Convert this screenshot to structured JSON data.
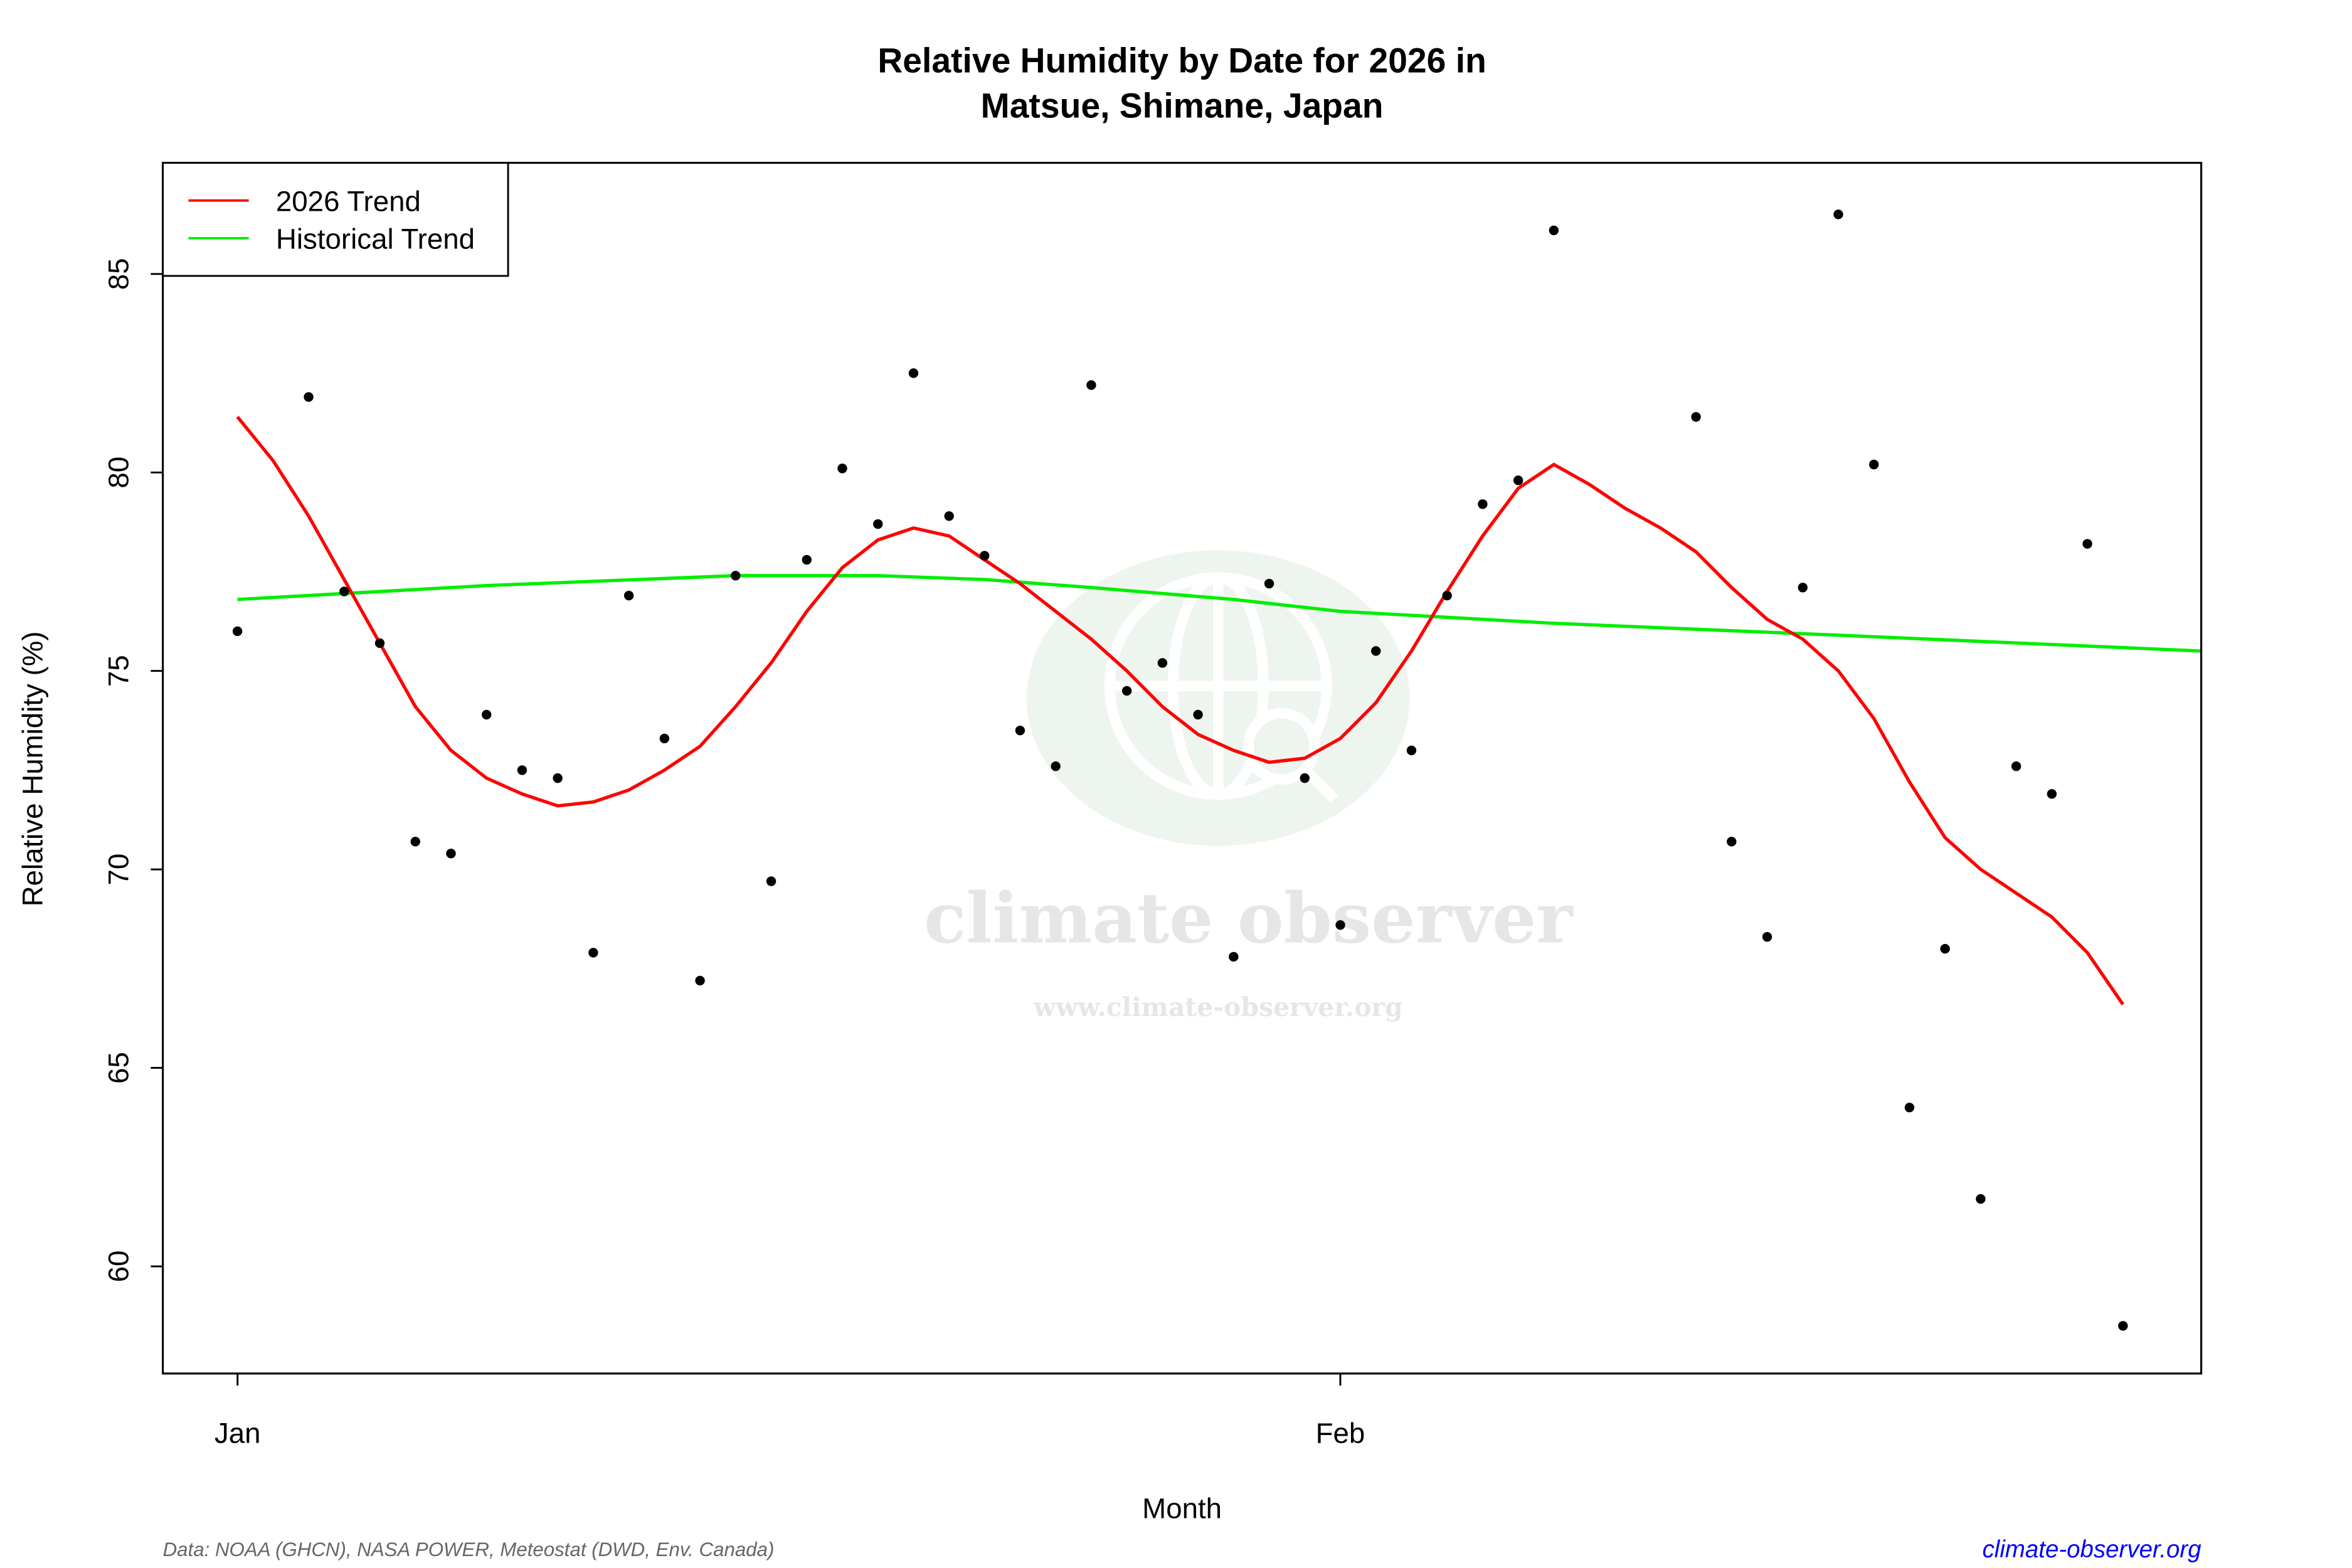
{
  "chart_data": {
    "type": "scatter",
    "title_line1": "Relative Humidity by Date for 2026 in",
    "title_line2": "Matsue, Shimane, Japan",
    "xlabel": "Month",
    "ylabel": "Relative Humidity (%)",
    "x_ticks": [
      {
        "date": "2026-01-01",
        "label": "Jan"
      },
      {
        "date": "2026-02-01",
        "label": "Feb"
      }
    ],
    "y_ticks": [
      60,
      65,
      70,
      75,
      80,
      85
    ],
    "xlim": [
      "2025-12-29.9",
      "2026-02-25.2"
    ],
    "ylim": [
      57.3,
      87.8
    ],
    "grid": false,
    "legend": {
      "placement": "top-left",
      "entries": [
        {
          "label": "2026 Trend",
          "color": "#ff0000"
        },
        {
          "label": "Historical Trend",
          "color": "#00ee00"
        }
      ]
    },
    "points": {
      "color": "#000000",
      "data": [
        [
          "2026-01-01",
          76.0
        ],
        [
          "2026-01-03",
          81.9
        ],
        [
          "2026-01-04",
          77.0
        ],
        [
          "2026-01-05",
          75.7
        ],
        [
          "2026-01-06",
          70.7
        ],
        [
          "2026-01-07",
          70.4
        ],
        [
          "2026-01-08",
          73.9
        ],
        [
          "2026-01-09",
          72.5
        ],
        [
          "2026-01-10",
          72.3
        ],
        [
          "2026-01-11",
          67.9
        ],
        [
          "2026-01-12",
          76.9
        ],
        [
          "2026-01-13",
          73.3
        ],
        [
          "2026-01-14",
          67.2
        ],
        [
          "2026-01-15",
          77.4
        ],
        [
          "2026-01-16",
          69.7
        ],
        [
          "2026-01-17",
          77.8
        ],
        [
          "2026-01-18",
          80.1
        ],
        [
          "2026-01-19",
          78.7
        ],
        [
          "2026-01-20",
          82.5
        ],
        [
          "2026-01-21",
          78.9
        ],
        [
          "2026-01-22",
          77.9
        ],
        [
          "2026-01-23",
          73.5
        ],
        [
          "2026-01-24",
          72.6
        ],
        [
          "2026-01-25",
          82.2
        ],
        [
          "2026-01-26",
          74.5
        ],
        [
          "2026-01-27",
          75.2
        ],
        [
          "2026-01-28",
          73.9
        ],
        [
          "2026-01-29",
          67.8
        ],
        [
          "2026-01-30",
          77.2
        ],
        [
          "2026-01-31",
          72.3
        ],
        [
          "2026-02-01",
          68.6
        ],
        [
          "2026-02-02",
          75.5
        ],
        [
          "2026-02-03",
          73.0
        ],
        [
          "2026-02-04",
          76.9
        ],
        [
          "2026-02-05",
          79.2
        ],
        [
          "2026-02-06",
          79.8
        ],
        [
          "2026-02-07",
          86.1
        ],
        [
          "2026-02-11",
          81.4
        ],
        [
          "2026-02-12",
          70.7
        ],
        [
          "2026-02-13",
          68.3
        ],
        [
          "2026-02-14",
          77.1
        ],
        [
          "2026-02-15",
          86.5
        ],
        [
          "2026-02-16",
          80.2
        ],
        [
          "2026-02-17",
          64.0
        ],
        [
          "2026-02-18",
          68.0
        ],
        [
          "2026-02-19",
          61.7
        ],
        [
          "2026-02-20",
          72.6
        ],
        [
          "2026-02-21",
          71.9
        ],
        [
          "2026-02-22",
          78.2
        ],
        [
          "2026-02-23",
          58.5
        ]
      ]
    },
    "series": [
      {
        "name": "2026 Trend",
        "color": "#ff0000",
        "data": [
          [
            "2026-01-01",
            81.4
          ],
          [
            "2026-01-02",
            80.3
          ],
          [
            "2026-01-03",
            78.9
          ],
          [
            "2026-01-04",
            77.3
          ],
          [
            "2026-01-05",
            75.7
          ],
          [
            "2026-01-06",
            74.1
          ],
          [
            "2026-01-07",
            73.0
          ],
          [
            "2026-01-08",
            72.3
          ],
          [
            "2026-01-09",
            71.9
          ],
          [
            "2026-01-10",
            71.6
          ],
          [
            "2026-01-11",
            71.7
          ],
          [
            "2026-01-12",
            72.0
          ],
          [
            "2026-01-13",
            72.5
          ],
          [
            "2026-01-14",
            73.1
          ],
          [
            "2026-01-15",
            74.1
          ],
          [
            "2026-01-16",
            75.2
          ],
          [
            "2026-01-17",
            76.5
          ],
          [
            "2026-01-18",
            77.6
          ],
          [
            "2026-01-19",
            78.3
          ],
          [
            "2026-01-20",
            78.6
          ],
          [
            "2026-01-21",
            78.4
          ],
          [
            "2026-01-22",
            77.8
          ],
          [
            "2026-01-23",
            77.2
          ],
          [
            "2026-01-24",
            76.5
          ],
          [
            "2026-01-25",
            75.8
          ],
          [
            "2026-01-26",
            75.0
          ],
          [
            "2026-01-27",
            74.1
          ],
          [
            "2026-01-28",
            73.4
          ],
          [
            "2026-01-29",
            73.0
          ],
          [
            "2026-01-30",
            72.7
          ],
          [
            "2026-01-31",
            72.8
          ],
          [
            "2026-02-01",
            73.3
          ],
          [
            "2026-02-02",
            74.2
          ],
          [
            "2026-02-03",
            75.5
          ],
          [
            "2026-02-04",
            77.0
          ],
          [
            "2026-02-05",
            78.4
          ],
          [
            "2026-02-06",
            79.6
          ],
          [
            "2026-02-07",
            80.2
          ],
          [
            "2026-02-08",
            79.7
          ],
          [
            "2026-02-09",
            79.1
          ],
          [
            "2026-02-10",
            78.6
          ],
          [
            "2026-02-11",
            78.0
          ],
          [
            "2026-02-12",
            77.1
          ],
          [
            "2026-02-13",
            76.3
          ],
          [
            "2026-02-14",
            75.8
          ],
          [
            "2026-02-15",
            75.0
          ],
          [
            "2026-02-16",
            73.8
          ],
          [
            "2026-02-17",
            72.2
          ],
          [
            "2026-02-18",
            70.8
          ],
          [
            "2026-02-19",
            70.0
          ],
          [
            "2026-02-20",
            69.4
          ],
          [
            "2026-02-21",
            68.8
          ],
          [
            "2026-02-22",
            67.9
          ],
          [
            "2026-02-23",
            66.6
          ]
        ]
      },
      {
        "name": "Historical Trend",
        "color": "#00ee00",
        "data": [
          [
            "2026-01-01",
            76.8
          ],
          [
            "2026-01-08",
            77.15
          ],
          [
            "2026-01-15",
            77.4
          ],
          [
            "2026-01-19",
            77.4
          ],
          [
            "2026-01-22",
            77.3
          ],
          [
            "2026-01-25",
            77.1
          ],
          [
            "2026-01-29",
            76.8
          ],
          [
            "2026-02-01",
            76.5
          ],
          [
            "2026-02-07",
            76.2
          ],
          [
            "2026-02-15",
            75.9
          ],
          [
            "2026-02-25.2",
            75.5
          ]
        ]
      }
    ]
  },
  "footer": {
    "source": "Data: NOAA (GHCN), NASA POWER, Meteostat (DWD, Env. Canada)",
    "link": "climate-observer.org",
    "link_color": "#0000ff"
  },
  "watermark": {
    "name": "climate observer",
    "url": "www.climate-observer.org"
  }
}
